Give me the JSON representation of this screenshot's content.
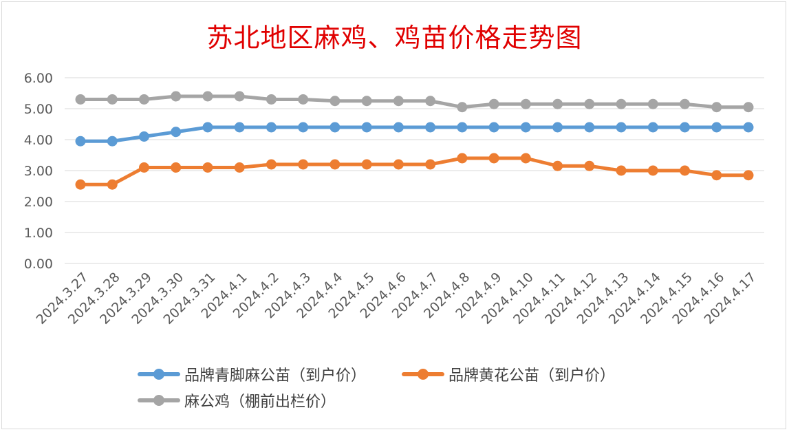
{
  "chart_data": {
    "type": "line",
    "title": "苏北地区麻鸡、鸡苗价格走势图",
    "xlabel": "",
    "ylabel": "",
    "ylim": [
      0,
      6
    ],
    "yticks": [
      "0.00",
      "1.00",
      "2.00",
      "3.00",
      "4.00",
      "5.00",
      "6.00"
    ],
    "grid": true,
    "legend_position": "bottom",
    "categories": [
      "2024.3.27",
      "2024.3.28",
      "2024.3.29",
      "2024.3.30",
      "2024.3.31",
      "2024.4.1",
      "2024.4.2",
      "2024.4.3",
      "2024.4.4",
      "2024.4.5",
      "2024.4.6",
      "2024.4.7",
      "2024.4.8",
      "2024.4.9",
      "2024.4.10",
      "2024.4.11",
      "2024.4.12",
      "2024.4.13",
      "2024.4.14",
      "2024.4.15",
      "2024.4.16",
      "2024.4.17"
    ],
    "series": [
      {
        "name": "品牌青脚麻公苗（到户价）",
        "color": "#5b9bd5",
        "values": [
          3.95,
          3.95,
          4.1,
          4.25,
          4.4,
          4.4,
          4.4,
          4.4,
          4.4,
          4.4,
          4.4,
          4.4,
          4.4,
          4.4,
          4.4,
          4.4,
          4.4,
          4.4,
          4.4,
          4.4,
          4.4,
          4.4
        ]
      },
      {
        "name": "品牌黄花公苗（到户价）",
        "color": "#ed7d31",
        "values": [
          2.55,
          2.55,
          3.1,
          3.1,
          3.1,
          3.1,
          3.2,
          3.2,
          3.2,
          3.2,
          3.2,
          3.2,
          3.4,
          3.4,
          3.4,
          3.15,
          3.15,
          3.0,
          3.0,
          3.0,
          2.85,
          2.85
        ]
      },
      {
        "name": "麻公鸡（棚前出栏价）",
        "color": "#a5a5a5",
        "values": [
          5.3,
          5.3,
          5.3,
          5.4,
          5.4,
          5.4,
          5.3,
          5.3,
          5.25,
          5.25,
          5.25,
          5.25,
          5.05,
          5.15,
          5.15,
          5.15,
          5.15,
          5.15,
          5.15,
          5.15,
          5.05,
          5.05
        ]
      }
    ]
  }
}
